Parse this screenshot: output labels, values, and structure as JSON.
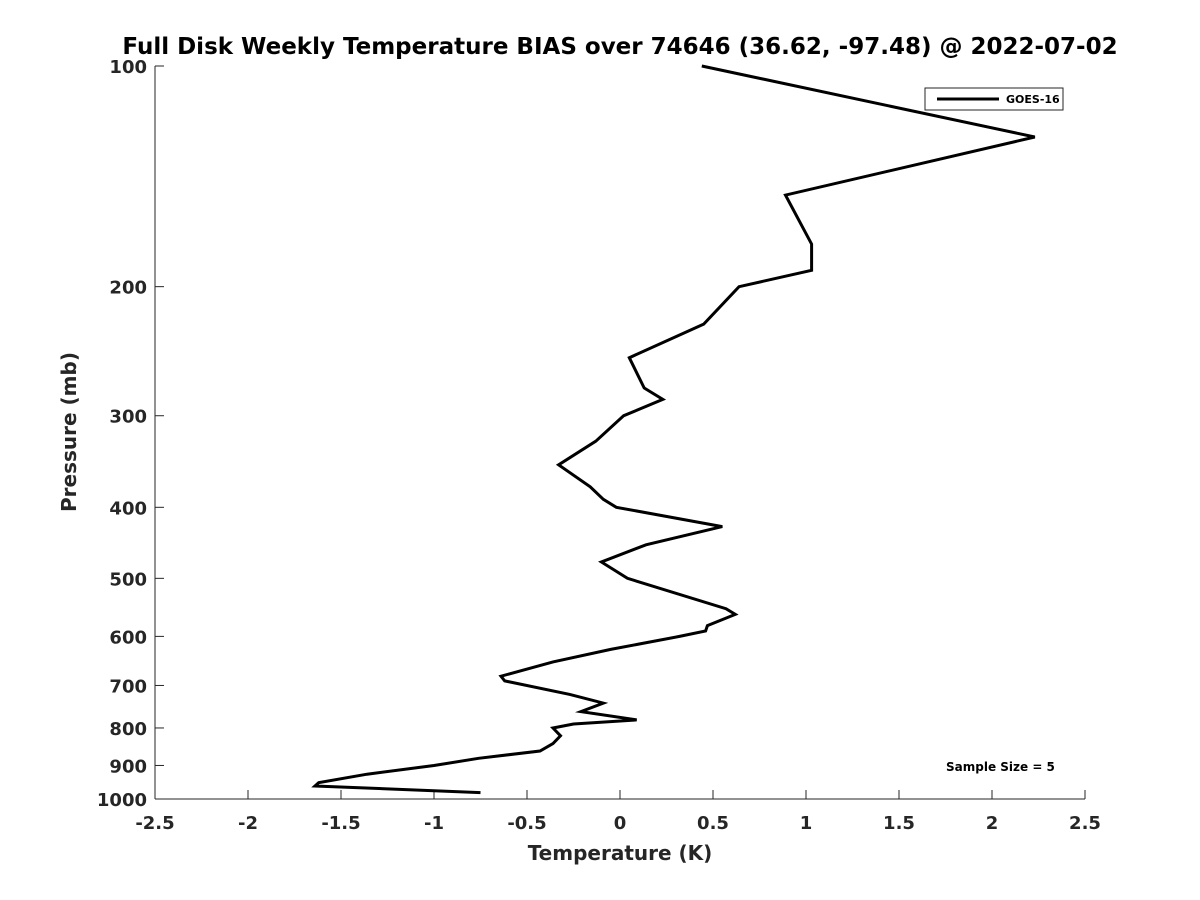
{
  "chart_data": {
    "type": "line",
    "title": "Full Disk Weekly Temperature BIAS over 74646 (36.62, -97.48) @ 2022-07-02",
    "xlabel": "Temperature (K)",
    "ylabel": "Pressure (mb)",
    "xlim": [
      -2.5,
      2.5
    ],
    "ylim": [
      100,
      1000
    ],
    "yscale": "log",
    "yreversed": true,
    "xticks": [
      -2.5,
      -2,
      -1.5,
      -1,
      -0.5,
      0,
      0.5,
      1,
      1.5,
      2,
      2.5
    ],
    "xtick_labels": [
      "-2.5",
      "-2",
      "-1.5",
      "-1",
      "-0.5",
      "0",
      "0.5",
      "1",
      "1.5",
      "2",
      "2.5"
    ],
    "yticks": [
      100,
      200,
      300,
      400,
      500,
      600,
      700,
      800,
      900,
      1000
    ],
    "ytick_labels": [
      "100",
      "200",
      "300",
      "400",
      "500",
      "600",
      "700",
      "800",
      "900",
      "1000"
    ],
    "grid": false,
    "legend": {
      "position": "top-right"
    },
    "annotation": "Sample Size = 5",
    "series": [
      {
        "name": "GOES-16",
        "color": "#000000",
        "points": [
          {
            "t": 0.44,
            "p": 100
          },
          {
            "t": 2.23,
            "p": 125
          },
          {
            "t": 0.89,
            "p": 150
          },
          {
            "t": 1.03,
            "p": 175
          },
          {
            "t": 1.03,
            "p": 190
          },
          {
            "t": 0.64,
            "p": 200
          },
          {
            "t": 0.45,
            "p": 225
          },
          {
            "t": 0.05,
            "p": 250
          },
          {
            "t": 0.13,
            "p": 275
          },
          {
            "t": 0.23,
            "p": 285
          },
          {
            "t": 0.02,
            "p": 300
          },
          {
            "t": -0.13,
            "p": 325
          },
          {
            "t": -0.33,
            "p": 350
          },
          {
            "t": -0.16,
            "p": 375
          },
          {
            "t": -0.09,
            "p": 390
          },
          {
            "t": -0.02,
            "p": 400
          },
          {
            "t": 0.55,
            "p": 425
          },
          {
            "t": 0.14,
            "p": 450
          },
          {
            "t": -0.1,
            "p": 475
          },
          {
            "t": 0.04,
            "p": 500
          },
          {
            "t": 0.57,
            "p": 550
          },
          {
            "t": 0.62,
            "p": 560
          },
          {
            "t": 0.47,
            "p": 580
          },
          {
            "t": 0.46,
            "p": 590
          },
          {
            "t": 0.32,
            "p": 600
          },
          {
            "t": -0.05,
            "p": 625
          },
          {
            "t": -0.36,
            "p": 650
          },
          {
            "t": -0.64,
            "p": 680
          },
          {
            "t": -0.62,
            "p": 690
          },
          {
            "t": -0.27,
            "p": 720
          },
          {
            "t": -0.09,
            "p": 740
          },
          {
            "t": -0.21,
            "p": 760
          },
          {
            "t": 0.09,
            "p": 780
          },
          {
            "t": -0.25,
            "p": 790
          },
          {
            "t": -0.36,
            "p": 800
          },
          {
            "t": -0.32,
            "p": 820
          },
          {
            "t": -0.36,
            "p": 840
          },
          {
            "t": -0.43,
            "p": 860
          },
          {
            "t": -0.76,
            "p": 880
          },
          {
            "t": -1.0,
            "p": 900
          },
          {
            "t": -1.36,
            "p": 925
          },
          {
            "t": -1.62,
            "p": 950
          },
          {
            "t": -1.64,
            "p": 960
          },
          {
            "t": -0.75,
            "p": 980
          }
        ]
      }
    ]
  }
}
